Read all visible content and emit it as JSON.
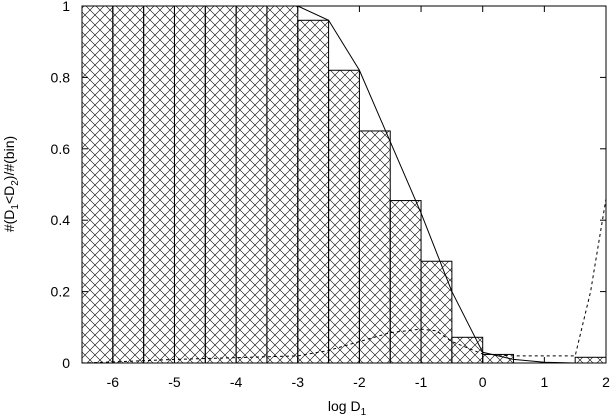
{
  "chart_data": {
    "type": "bar",
    "xlabel": "log D",
    "xlabel_sub": "1",
    "ylabel_parts": {
      "prefix": "#(D",
      "sub1": "1",
      "mid": "<D",
      "sub2": "2",
      "suffix": ")/#(bin)"
    },
    "xlim": [
      -6.5,
      2
    ],
    "ylim": [
      0,
      1
    ],
    "xticks": [
      -6,
      -5,
      -4,
      -3,
      -2,
      -1,
      0,
      1,
      2
    ],
    "yticks": [
      0,
      0.2,
      0.4,
      0.6,
      0.8,
      1
    ],
    "xtick_labels": [
      "-6",
      "-5",
      "-4",
      "-3",
      "-2",
      "-1",
      "0",
      "1",
      "2"
    ],
    "ytick_labels": [
      "0",
      "0.2",
      "0.4",
      "0.6",
      "0.8",
      "1"
    ],
    "bin_width": 0.5,
    "bins": [
      {
        "x0": -6.5,
        "value": 1.0
      },
      {
        "x0": -6.0,
        "value": 1.0
      },
      {
        "x0": -5.5,
        "value": 1.0
      },
      {
        "x0": -5.0,
        "value": 1.0
      },
      {
        "x0": -4.5,
        "value": 1.0
      },
      {
        "x0": -4.0,
        "value": 1.0
      },
      {
        "x0": -3.5,
        "value": 1.0
      },
      {
        "x0": -3.0,
        "value": 0.96
      },
      {
        "x0": -2.5,
        "value": 0.82
      },
      {
        "x0": -2.0,
        "value": 0.65
      },
      {
        "x0": -1.5,
        "value": 0.455
      },
      {
        "x0": -1.0,
        "value": 0.285
      },
      {
        "x0": -0.5,
        "value": 0.072
      },
      {
        "x0": 0.0,
        "value": 0.024
      },
      {
        "x0": 0.5,
        "value": 0.0
      },
      {
        "x0": 1.0,
        "value": 0.0
      },
      {
        "x0": 1.5,
        "value": 0.016
      }
    ],
    "series": [
      {
        "style": "solid",
        "x": [
          -6.5,
          -3.5,
          -3.0,
          -2.5,
          -2.0,
          -1.5,
          -1.0,
          -0.5,
          0.0,
          0.5,
          1.0,
          1.5,
          2.0
        ],
        "y": [
          1.0,
          1.0,
          1.0,
          0.96,
          0.82,
          0.62,
          0.42,
          0.2,
          0.03,
          0.01,
          0.002,
          0.0,
          0.0
        ]
      },
      {
        "style": "dashed",
        "x": [
          -6.5,
          -6.0,
          -5.0,
          -4.0,
          -3.0,
          -2.5,
          -2.0,
          -1.5,
          -1.0,
          -0.75,
          -0.5,
          0.0,
          0.5,
          1.0,
          1.5,
          1.75,
          2.0
        ],
        "y": [
          0.0,
          0.003,
          0.01,
          0.015,
          0.02,
          0.035,
          0.06,
          0.085,
          0.095,
          0.09,
          0.06,
          0.025,
          0.02,
          0.02,
          0.02,
          0.2,
          0.46
        ]
      }
    ]
  }
}
